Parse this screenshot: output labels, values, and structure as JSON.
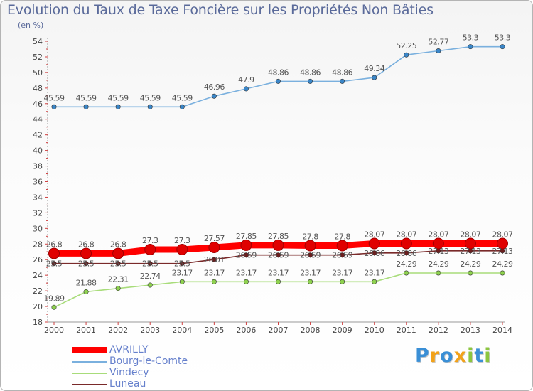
{
  "title": "Evolution du Taux de Taxe Foncière sur les Propriétés Non Bâties",
  "subtitle": "(en %)",
  "brand": {
    "text": "Proxiti",
    "letters": [
      {
        "char": "P",
        "color": "#3a8fd6"
      },
      {
        "char": "r",
        "color": "#f2a21a"
      },
      {
        "char": "o",
        "color": "#3a8fd6"
      },
      {
        "char": "x",
        "color": "#f2a21a"
      },
      {
        "char": "i",
        "color": "#8cc63f"
      },
      {
        "char": "t",
        "color": "#3a8fd6"
      },
      {
        "char": "i",
        "color": "#8cc63f"
      }
    ]
  },
  "chart_data": {
    "type": "line",
    "title": "Evolution du Taux de Taxe Foncière sur les Propriétés Non Bâties",
    "ylabel": "(en %)",
    "xlabel": "",
    "x": [
      "2000",
      "2001",
      "2002",
      "2003",
      "2004",
      "2005",
      "2006",
      "2007",
      "2008",
      "2009",
      "2010",
      "2011",
      "2012",
      "2013",
      "2014"
    ],
    "ylim": [
      18,
      54
    ],
    "yticks": [
      18,
      20,
      22,
      24,
      26,
      28,
      30,
      32,
      34,
      36,
      38,
      40,
      42,
      44,
      46,
      48,
      50,
      52,
      54
    ],
    "grid": false,
    "legend_position": "bottom-left",
    "series": [
      {
        "name": "AVRILLY",
        "color": "#ff0000",
        "values": [
          26.8,
          26.8,
          26.8,
          27.3,
          27.3,
          27.57,
          27.85,
          27.85,
          27.8,
          27.8,
          28.07,
          28.07,
          28.07,
          28.07,
          28.07
        ],
        "labels": [
          "26.8",
          "26.8",
          "26.8",
          "27.3",
          "27.3",
          "27.57",
          "27.85",
          "27.85",
          "27.8",
          "27.8",
          "28.07",
          "28.07",
          "28.07",
          "28.07",
          "28.07"
        ]
      },
      {
        "name": "Bourg-le-Comte",
        "color": "#7ab0de",
        "values": [
          45.59,
          45.59,
          45.59,
          45.59,
          45.59,
          46.96,
          47.9,
          48.86,
          48.86,
          48.86,
          49.34,
          52.25,
          52.77,
          53.3,
          53.3
        ],
        "labels": [
          "45.59",
          "45.59",
          "45.59",
          "45.59",
          "45.59",
          "46.96",
          "47.9",
          "48.86",
          "48.86",
          "48.86",
          "49.34",
          "52.25",
          "52.77",
          "53.3",
          "53.3"
        ]
      },
      {
        "name": "Vindecy",
        "color": "#a8dc7a",
        "values": [
          19.89,
          21.88,
          22.31,
          22.74,
          23.17,
          23.17,
          23.17,
          23.17,
          23.17,
          23.17,
          23.17,
          24.29,
          24.29,
          24.29,
          24.29
        ],
        "labels": [
          "19.89",
          "21.88",
          "22.31",
          "22.74",
          "23.17",
          "23.17",
          "23.17",
          "23.17",
          "23.17",
          "23.17",
          "23.17",
          "24.29",
          "24.29",
          "24.29",
          "24.29"
        ]
      },
      {
        "name": "Luneau",
        "color": "#7a2a2a",
        "values": [
          25.5,
          25.5,
          25.5,
          25.5,
          25.5,
          26.01,
          26.59,
          26.59,
          26.59,
          26.59,
          26.86,
          26.86,
          27.13,
          27.13,
          27.13
        ],
        "labels": [
          "25.5",
          "25.5",
          "25.5",
          "25.5",
          "25.5",
          "26.01",
          "26.59",
          "26.59",
          "26.59",
          "26.59",
          "26.86",
          "26.86",
          "27.13",
          "27.13",
          "27.13"
        ]
      }
    ]
  }
}
